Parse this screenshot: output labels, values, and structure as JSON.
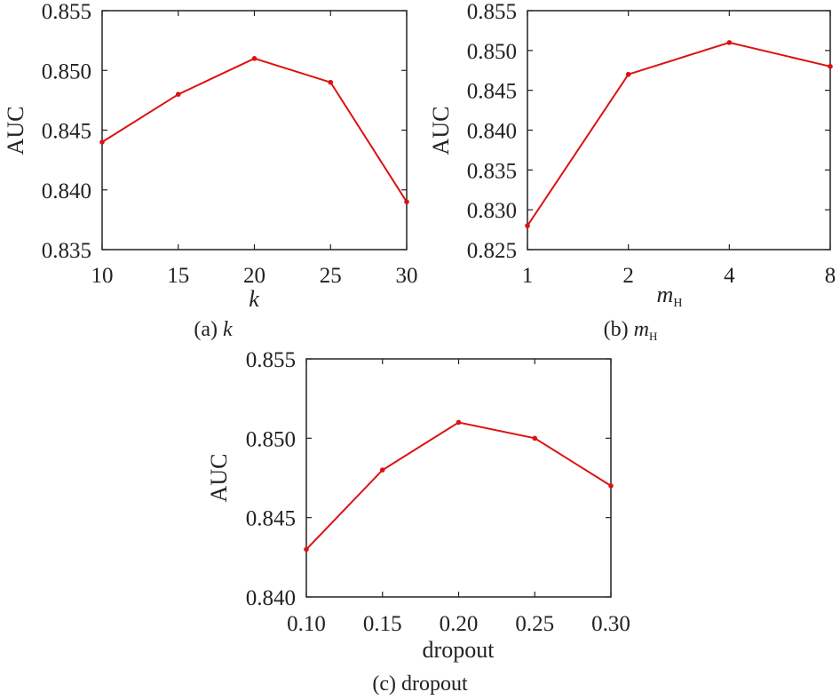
{
  "chart_data": [
    {
      "type": "line",
      "id": "a",
      "caption": "(a) k",
      "xlabel": "k",
      "ylabel": "AUC",
      "x": [
        10,
        15,
        20,
        25,
        30
      ],
      "xticks": [
        "10",
        "15",
        "20",
        "25",
        "30"
      ],
      "yticks": [
        "0.835",
        "0.840",
        "0.845",
        "0.850",
        "0.855"
      ],
      "xlim": [
        10,
        30
      ],
      "ylim": [
        0.835,
        0.855
      ],
      "series": [
        {
          "values": [
            0.844,
            0.848,
            0.851,
            0.849,
            0.839
          ]
        }
      ],
      "grid": false
    },
    {
      "type": "line",
      "id": "b",
      "caption": "(b) mH",
      "xlabel": "mH",
      "ylabel": "AUC",
      "x_scale": "log2",
      "x": [
        1,
        2,
        4,
        8
      ],
      "xticks": [
        "1",
        "2",
        "4",
        "8"
      ],
      "yticks": [
        "0.825",
        "0.830",
        "0.835",
        "0.840",
        "0.845",
        "0.850",
        "0.855"
      ],
      "xlim": [
        1,
        8
      ],
      "ylim": [
        0.825,
        0.855
      ],
      "series": [
        {
          "values": [
            0.828,
            0.847,
            0.851,
            0.848
          ]
        }
      ],
      "grid": false
    },
    {
      "type": "line",
      "id": "c",
      "caption": "(c) dropout",
      "xlabel": "dropout",
      "ylabel": "AUC",
      "x": [
        0.1,
        0.15,
        0.2,
        0.25,
        0.3
      ],
      "xticks": [
        "0.10",
        "0.15",
        "0.20",
        "0.25",
        "0.30"
      ],
      "yticks": [
        "0.840",
        "0.845",
        "0.850",
        "0.855"
      ],
      "xlim": [
        0.1,
        0.3
      ],
      "ylim": [
        0.84,
        0.855
      ],
      "series": [
        {
          "values": [
            0.843,
            0.848,
            0.851,
            0.85,
            0.847
          ]
        }
      ],
      "grid": false
    }
  ],
  "colors": {
    "series": "#dd1111",
    "axis": "#222222"
  }
}
